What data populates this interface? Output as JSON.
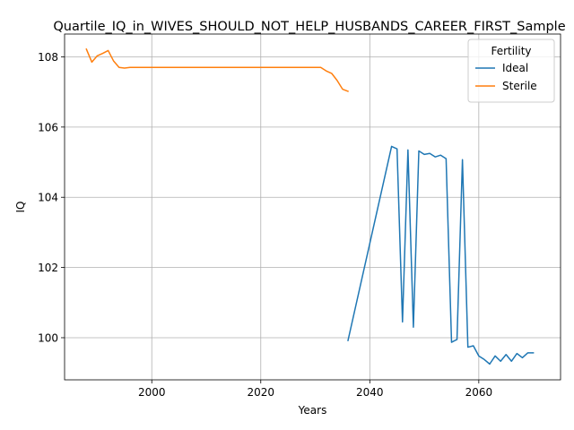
{
  "chart_data": {
    "type": "line",
    "title": "Quartile_IQ_in_WIVES_SHOULD_NOT_HELP_HUSBANDS_CAREER_FIRST_Sample",
    "xlabel": "Years",
    "ylabel": "IQ",
    "xlim": [
      1984,
      2075
    ],
    "ylim": [
      98.8,
      108.65
    ],
    "xticks": [
      2000,
      2020,
      2040,
      2060
    ],
    "yticks": [
      100,
      102,
      104,
      106,
      108
    ],
    "grid": true,
    "legend": {
      "title": "Fertility",
      "placement": "top-right"
    },
    "series": [
      {
        "name": "Ideal",
        "color": "#1f77b4",
        "x": [
          2036,
          2044,
          2045,
          2046,
          2047,
          2048,
          2049,
          2050,
          2051,
          2052,
          2053,
          2054,
          2055,
          2056,
          2057,
          2058,
          2059,
          2060,
          2061,
          2062,
          2063,
          2064,
          2065,
          2066,
          2067,
          2068,
          2069,
          2070
        ],
        "y": [
          99.92,
          105.45,
          105.38,
          100.45,
          105.35,
          100.3,
          105.32,
          105.22,
          105.25,
          105.15,
          105.2,
          105.1,
          99.87,
          99.95,
          105.07,
          99.73,
          99.77,
          99.48,
          99.38,
          99.25,
          99.48,
          99.33,
          99.52,
          99.33,
          99.55,
          99.43,
          99.57,
          99.57
        ]
      },
      {
        "name": "Sterile",
        "color": "#ff7f0e",
        "x": [
          1988,
          1989,
          1990,
          1991,
          1992,
          1993,
          1994,
          1995,
          1996,
          1997,
          1998,
          2000,
          2005,
          2010,
          2015,
          2020,
          2025,
          2030,
          2031,
          2032,
          2033,
          2034,
          2035,
          2036
        ],
        "y": [
          108.22,
          107.85,
          108.03,
          108.1,
          108.18,
          107.88,
          107.7,
          107.68,
          107.7,
          107.7,
          107.7,
          107.7,
          107.7,
          107.7,
          107.7,
          107.7,
          107.7,
          107.7,
          107.7,
          107.6,
          107.53,
          107.33,
          107.08,
          107.02
        ]
      }
    ]
  }
}
